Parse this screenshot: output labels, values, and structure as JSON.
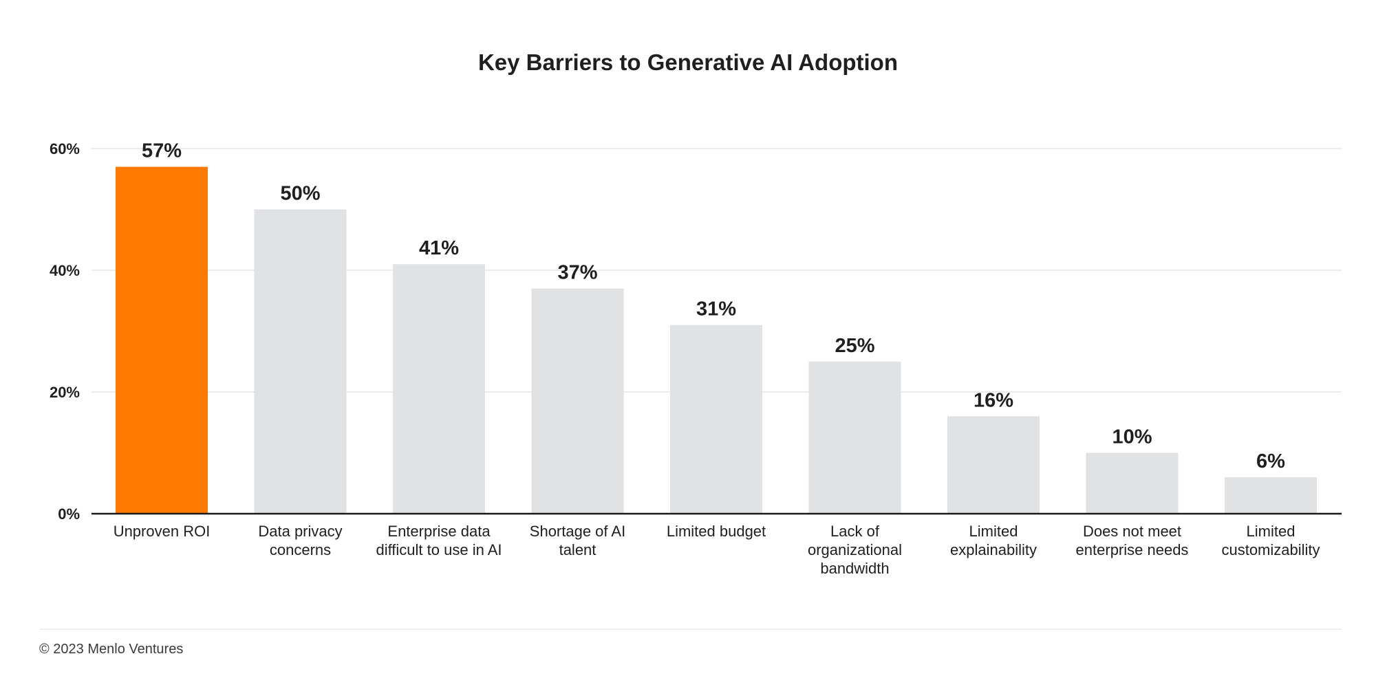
{
  "chart_data": {
    "type": "bar",
    "title": "Key Barriers to Generative AI Adoption",
    "categories": [
      [
        "Unproven ROI"
      ],
      [
        "Data privacy",
        "concerns"
      ],
      [
        "Enterprise data",
        "difficult to use in AI"
      ],
      [
        "Shortage of AI",
        "talent"
      ],
      [
        "Limited budget"
      ],
      [
        "Lack of",
        "organizational",
        "bandwidth"
      ],
      [
        "Limited",
        "explainability"
      ],
      [
        "Does not meet",
        "enterprise needs"
      ],
      [
        "Limited",
        "customizability"
      ]
    ],
    "values": [
      57,
      50,
      41,
      37,
      31,
      25,
      16,
      10,
      6
    ],
    "value_labels": [
      "57%",
      "50%",
      "41%",
      "37%",
      "31%",
      "25%",
      "16%",
      "10%",
      "6%"
    ],
    "y_ticks": [
      "0%",
      "20%",
      "40%",
      "60%"
    ],
    "y_tick_values": [
      0,
      20,
      40,
      60
    ],
    "ylim": [
      0,
      60
    ],
    "grid": true,
    "colors": {
      "highlight": "#FF7A00",
      "default": "#E1E2E4",
      "axis": "#1a1a1a",
      "grid": "#ececec",
      "text": "#1f1f1f"
    },
    "highlight_index": 0
  },
  "footer": {
    "copyright": "© 2023 Menlo Ventures"
  }
}
